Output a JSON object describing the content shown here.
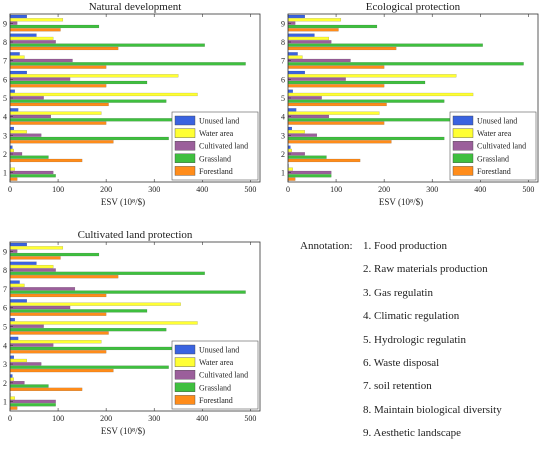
{
  "chart_data": [
    {
      "type": "bar",
      "orientation": "horizontal",
      "title": "Natural development",
      "xlabel": "ESV (10⁸/$)",
      "xlim": [
        0,
        520
      ],
      "xticks": [
        "0",
        "100",
        "200",
        "300",
        "400",
        "500"
      ],
      "categories": [
        "1",
        "2",
        "3",
        "4",
        "5",
        "6",
        "7",
        "8",
        "9"
      ],
      "legend_position": "lower-right",
      "series": [
        {
          "name": "Unused land",
          "color": "#3a63e0",
          "values": [
            1,
            5,
            8,
            17,
            10,
            35,
            20,
            55,
            35
          ]
        },
        {
          "name": "Water area",
          "color": "#ffff33",
          "values": [
            10,
            8,
            35,
            190,
            390,
            350,
            30,
            90,
            110
          ]
        },
        {
          "name": "Cultivated land",
          "color": "#9b5f9b",
          "values": [
            90,
            25,
            65,
            85,
            70,
            125,
            130,
            95,
            15
          ]
        },
        {
          "name": "Grassland",
          "color": "#3fbf3f",
          "values": [
            95,
            80,
            330,
            340,
            325,
            285,
            490,
            405,
            185
          ]
        },
        {
          "name": "Forestland",
          "color": "#ff8c1a",
          "values": [
            15,
            150,
            215,
            200,
            205,
            200,
            200,
            225,
            105
          ]
        }
      ]
    },
    {
      "type": "bar",
      "orientation": "horizontal",
      "title": "Ecological protection",
      "xlabel": "ESV (10⁸/$)",
      "xlim": [
        0,
        520
      ],
      "xticks": [
        "0",
        "100",
        "200",
        "300",
        "400",
        "500"
      ],
      "categories": [
        "1",
        "2",
        "3",
        "4",
        "5",
        "6",
        "7",
        "8",
        "9"
      ],
      "legend_position": "lower-right",
      "series": [
        {
          "name": "Unused land",
          "color": "#3a63e0",
          "values": [
            1,
            5,
            8,
            17,
            10,
            35,
            20,
            55,
            35
          ]
        },
        {
          "name": "Water area",
          "color": "#ffff33",
          "values": [
            10,
            8,
            35,
            190,
            385,
            350,
            30,
            85,
            110
          ]
        },
        {
          "name": "Cultivated land",
          "color": "#9b5f9b",
          "values": [
            90,
            35,
            60,
            85,
            70,
            120,
            130,
            90,
            15
          ]
        },
        {
          "name": "Grassland",
          "color": "#3fbf3f",
          "values": [
            90,
            80,
            325,
            340,
            325,
            285,
            490,
            405,
            185
          ]
        },
        {
          "name": "Forestland",
          "color": "#ff8c1a",
          "values": [
            15,
            150,
            215,
            200,
            205,
            200,
            200,
            225,
            105
          ]
        }
      ]
    },
    {
      "type": "bar",
      "orientation": "horizontal",
      "title": "Cultivated land protection",
      "xlabel": "ESV (10⁸/$)",
      "xlim": [
        0,
        520
      ],
      "xticks": [
        "0",
        "100",
        "200",
        "300",
        "400",
        "500"
      ],
      "categories": [
        "1",
        "2",
        "3",
        "4",
        "5",
        "6",
        "7",
        "8",
        "9"
      ],
      "legend_position": "lower-right",
      "series": [
        {
          "name": "Unused land",
          "color": "#3a63e0",
          "values": [
            1,
            5,
            8,
            17,
            10,
            35,
            20,
            55,
            35
          ]
        },
        {
          "name": "Water area",
          "color": "#ffff33",
          "values": [
            10,
            8,
            35,
            190,
            390,
            355,
            30,
            90,
            110
          ]
        },
        {
          "name": "Cultivated land",
          "color": "#9b5f9b",
          "values": [
            95,
            30,
            65,
            90,
            70,
            125,
            135,
            95,
            15
          ]
        },
        {
          "name": "Grassland",
          "color": "#3fbf3f",
          "values": [
            95,
            80,
            330,
            340,
            325,
            285,
            490,
            405,
            185
          ]
        },
        {
          "name": "Forestland",
          "color": "#ff8c1a",
          "values": [
            15,
            150,
            215,
            200,
            205,
            200,
            200,
            225,
            105
          ]
        }
      ]
    }
  ],
  "annotation": {
    "title": "Annotation:",
    "items": [
      "1. Food production",
      "2. Raw materials production",
      "3. Gas regulatin",
      "4. Climatic regulation",
      "5. Hydrologic regulatin",
      "6. Waste disposal",
      "7. soil retention",
      "8. Maintain biological diversity",
      "9. Aesthetic landscape"
    ]
  }
}
